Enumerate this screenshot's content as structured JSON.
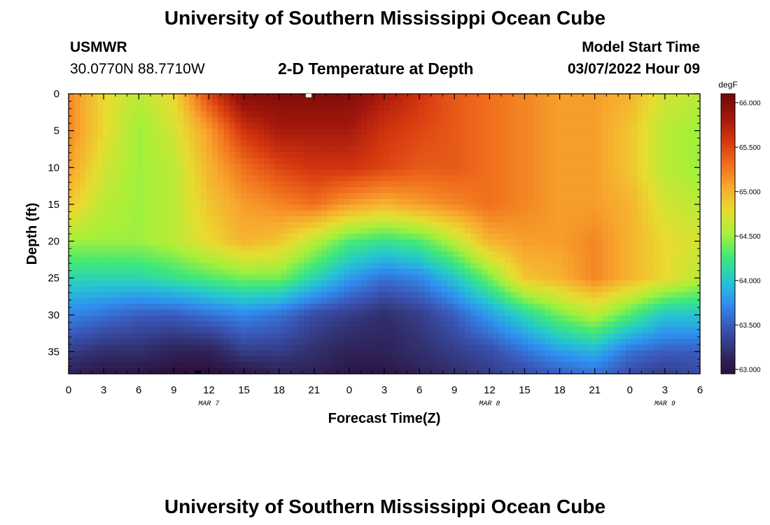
{
  "header": {
    "title": "University of Southern Mississippi Ocean Cube",
    "station": "USMWR",
    "coords": "30.0770N  88.7710W",
    "plot_title": "2-D Temperature at Depth",
    "model_label": "Model Start Time",
    "model_time": "03/07/2022 Hour 09"
  },
  "footer": {
    "title": "University of Southern Mississippi Ocean Cube"
  },
  "colors": {
    "scale": [
      "#2b0f3a",
      "#32306e",
      "#3a57b8",
      "#2f8ff0",
      "#25c7d0",
      "#3fe87a",
      "#a7f03a",
      "#e8dc30",
      "#f8a92e",
      "#f06c1c",
      "#d4360f",
      "#a0160c",
      "#6e0a08"
    ]
  },
  "chart_data": {
    "type": "heatmap",
    "title": "2-D Temperature at Depth",
    "xlabel": "Forecast Time(Z)",
    "ylabel": "Depth (ft)",
    "colorbar_label": "degF",
    "x_hours_range": [
      0,
      54
    ],
    "ylim": [
      0,
      38
    ],
    "y_inverted": true,
    "xticks": [
      "0",
      "3",
      "6",
      "9",
      "12",
      "15",
      "18",
      "21",
      "0",
      "3",
      "6",
      "9",
      "12",
      "15",
      "18",
      "21",
      "0",
      "3",
      "6"
    ],
    "xtick_hours": [
      0,
      3,
      6,
      9,
      12,
      15,
      18,
      21,
      24,
      27,
      30,
      33,
      36,
      39,
      42,
      45,
      48,
      51,
      54
    ],
    "yticks": [
      "0",
      "5",
      "10",
      "15",
      "20",
      "25",
      "30",
      "35"
    ],
    "ytick_values": [
      0,
      5,
      10,
      15,
      20,
      25,
      30,
      35
    ],
    "date_labels": [
      {
        "label": "MAR 7",
        "hour": 12
      },
      {
        "label": "MAR 8",
        "hour": 36
      },
      {
        "label": "MAR 9",
        "hour": 51
      }
    ],
    "colorbar_range": [
      62.95,
      66.1
    ],
    "colorbar_ticks": [
      "63.000",
      "63.500",
      "64.000",
      "64.500",
      "65.000",
      "65.500",
      "66.000"
    ],
    "colorbar_tick_values": [
      63.0,
      63.5,
      64.0,
      64.5,
      65.0,
      65.5,
      66.0
    ],
    "grid_x_hours": [
      0,
      3,
      6,
      9,
      12,
      15,
      18,
      21,
      24,
      27,
      30,
      33,
      36,
      39,
      42,
      45,
      48,
      51,
      54
    ],
    "grid_depths_ft": [
      0,
      5,
      10,
      15,
      20,
      25,
      30,
      35,
      38
    ],
    "values_degF": [
      [
        65.2,
        64.8,
        64.6,
        64.8,
        65.5,
        66.0,
        66.0,
        66.0,
        66.0,
        65.8,
        65.6,
        65.4,
        65.3,
        65.2,
        65.1,
        65.1,
        65.0,
        64.7,
        64.6
      ],
      [
        65.2,
        64.8,
        64.5,
        64.7,
        65.1,
        65.6,
        65.8,
        65.8,
        65.8,
        65.6,
        65.5,
        65.4,
        65.3,
        65.2,
        65.1,
        65.1,
        64.9,
        64.6,
        64.5
      ],
      [
        65.1,
        64.7,
        64.5,
        64.6,
        65.0,
        65.3,
        65.5,
        65.6,
        65.6,
        65.5,
        65.4,
        65.4,
        65.3,
        65.2,
        65.1,
        65.1,
        64.9,
        64.6,
        64.5
      ],
      [
        64.9,
        64.6,
        64.5,
        64.6,
        64.9,
        65.1,
        65.2,
        65.3,
        65.1,
        65.0,
        65.1,
        65.2,
        65.3,
        65.2,
        65.1,
        65.1,
        65.0,
        64.7,
        64.6
      ],
      [
        64.5,
        64.5,
        64.5,
        64.6,
        64.8,
        65.0,
        64.9,
        64.6,
        64.3,
        64.2,
        64.3,
        64.6,
        65.0,
        65.1,
        65.1,
        65.2,
        65.0,
        64.8,
        64.7
      ],
      [
        64.1,
        64.1,
        64.1,
        64.2,
        64.3,
        64.4,
        64.4,
        64.1,
        63.8,
        63.6,
        63.7,
        64.0,
        64.4,
        64.9,
        65.0,
        65.2,
        65.0,
        64.8,
        64.6
      ],
      [
        63.7,
        63.6,
        63.5,
        63.5,
        63.6,
        63.7,
        63.6,
        63.4,
        63.3,
        63.2,
        63.3,
        63.5,
        63.8,
        64.1,
        64.4,
        64.6,
        64.3,
        64.0,
        64.0
      ],
      [
        63.3,
        63.2,
        63.2,
        63.1,
        63.1,
        63.3,
        63.3,
        63.2,
        63.1,
        63.1,
        63.2,
        63.3,
        63.4,
        63.6,
        63.8,
        63.9,
        63.6,
        63.5,
        63.5
      ],
      [
        63.1,
        63.0,
        63.0,
        62.95,
        62.95,
        63.0,
        63.1,
        63.1,
        63.0,
        63.0,
        63.1,
        63.2,
        63.3,
        63.4,
        63.5,
        63.6,
        63.4,
        63.3,
        63.4
      ]
    ]
  }
}
